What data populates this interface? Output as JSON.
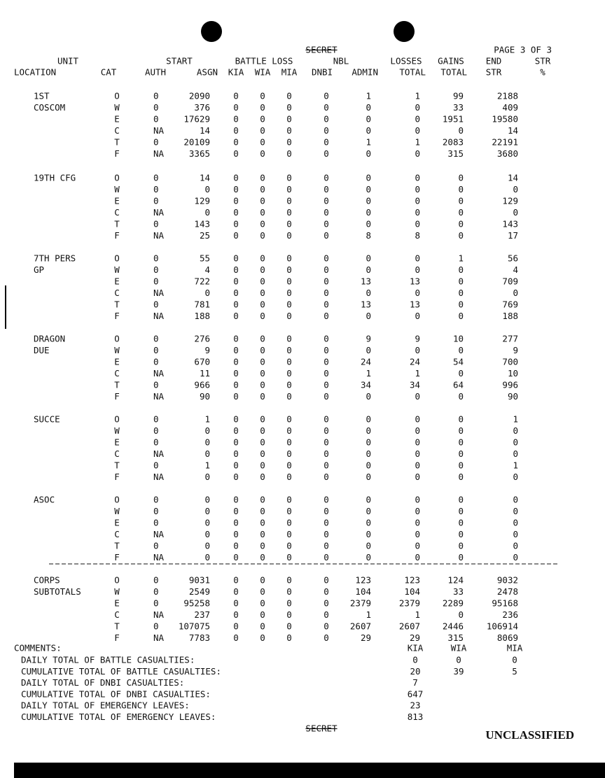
{
  "header": {
    "classification": "SECRET",
    "page": "PAGE 3 OF 3",
    "columns_top": [
      "UNIT",
      "START",
      "BATTLE LOSS",
      "NBL",
      "LOSSES",
      "GAINS",
      "END",
      "STR"
    ],
    "columns_bottom": [
      "LOCATION",
      "CAT",
      "AUTH",
      "ASGN",
      "KIA",
      "WIA",
      "MIA",
      "DNBI",
      "ADMIN",
      "TOTAL",
      "TOTAL",
      "STR",
      "%"
    ]
  },
  "units": [
    {
      "name": [
        "1ST",
        "COSCOM"
      ],
      "rows": [
        [
          "O",
          0,
          2090,
          0,
          0,
          0,
          0,
          1,
          1,
          99,
          2188
        ],
        [
          "W",
          0,
          376,
          0,
          0,
          0,
          0,
          0,
          0,
          33,
          409
        ],
        [
          "E",
          0,
          17629,
          0,
          0,
          0,
          0,
          0,
          0,
          1951,
          19580
        ],
        [
          "C",
          "NA",
          14,
          0,
          0,
          0,
          0,
          0,
          0,
          0,
          14
        ],
        [
          "T",
          0,
          20109,
          0,
          0,
          0,
          0,
          1,
          1,
          2083,
          22191
        ],
        [
          "F",
          "NA",
          3365,
          0,
          0,
          0,
          0,
          0,
          0,
          315,
          3680
        ]
      ]
    },
    {
      "name": [
        "19TH CFG"
      ],
      "rows": [
        [
          "O",
          0,
          14,
          0,
          0,
          0,
          0,
          0,
          0,
          0,
          14
        ],
        [
          "W",
          0,
          0,
          0,
          0,
          0,
          0,
          0,
          0,
          0,
          0
        ],
        [
          "E",
          0,
          129,
          0,
          0,
          0,
          0,
          0,
          0,
          0,
          129
        ],
        [
          "C",
          "NA",
          0,
          0,
          0,
          0,
          0,
          0,
          0,
          0,
          0
        ],
        [
          "T",
          0,
          143,
          0,
          0,
          0,
          0,
          0,
          0,
          0,
          143
        ],
        [
          "F",
          "NA",
          25,
          0,
          0,
          0,
          0,
          8,
          8,
          0,
          17
        ]
      ]
    },
    {
      "name": [
        "7TH PERS",
        "GP"
      ],
      "rows": [
        [
          "O",
          0,
          55,
          0,
          0,
          0,
          0,
          0,
          0,
          1,
          56
        ],
        [
          "W",
          0,
          4,
          0,
          0,
          0,
          0,
          0,
          0,
          0,
          4
        ],
        [
          "E",
          0,
          722,
          0,
          0,
          0,
          0,
          13,
          13,
          0,
          709
        ],
        [
          "C",
          "NA",
          0,
          0,
          0,
          0,
          0,
          0,
          0,
          0,
          0
        ],
        [
          "T",
          0,
          781,
          0,
          0,
          0,
          0,
          13,
          13,
          0,
          769
        ],
        [
          "F",
          "NA",
          188,
          0,
          0,
          0,
          0,
          0,
          0,
          0,
          188
        ]
      ]
    },
    {
      "name": [
        "DRAGON",
        "DUE"
      ],
      "rows": [
        [
          "O",
          0,
          276,
          0,
          0,
          0,
          0,
          9,
          9,
          10,
          277
        ],
        [
          "W",
          0,
          9,
          0,
          0,
          0,
          0,
          0,
          0,
          0,
          9
        ],
        [
          "E",
          0,
          670,
          0,
          0,
          0,
          0,
          24,
          24,
          54,
          700
        ],
        [
          "C",
          "NA",
          11,
          0,
          0,
          0,
          0,
          1,
          1,
          0,
          10
        ],
        [
          "T",
          0,
          966,
          0,
          0,
          0,
          0,
          34,
          34,
          64,
          996
        ],
        [
          "F",
          "NA",
          90,
          0,
          0,
          0,
          0,
          0,
          0,
          0,
          90
        ]
      ]
    },
    {
      "name": [
        "SUCCE"
      ],
      "rows": [
        [
          "O",
          0,
          1,
          0,
          0,
          0,
          0,
          0,
          0,
          0,
          1
        ],
        [
          "W",
          0,
          0,
          0,
          0,
          0,
          0,
          0,
          0,
          0,
          0
        ],
        [
          "E",
          0,
          0,
          0,
          0,
          0,
          0,
          0,
          0,
          0,
          0
        ],
        [
          "C",
          "NA",
          0,
          0,
          0,
          0,
          0,
          0,
          0,
          0,
          0
        ],
        [
          "T",
          0,
          1,
          0,
          0,
          0,
          0,
          0,
          0,
          0,
          1
        ],
        [
          "F",
          "NA",
          0,
          0,
          0,
          0,
          0,
          0,
          0,
          0,
          0
        ]
      ]
    },
    {
      "name": [
        "ASOC"
      ],
      "rows": [
        [
          "O",
          0,
          0,
          0,
          0,
          0,
          0,
          0,
          0,
          0,
          0
        ],
        [
          "W",
          0,
          0,
          0,
          0,
          0,
          0,
          0,
          0,
          0,
          0
        ],
        [
          "E",
          0,
          0,
          0,
          0,
          0,
          0,
          0,
          0,
          0,
          0
        ],
        [
          "C",
          "NA",
          0,
          0,
          0,
          0,
          0,
          0,
          0,
          0,
          0
        ],
        [
          "T",
          0,
          0,
          0,
          0,
          0,
          0,
          0,
          0,
          0,
          0
        ],
        [
          "F",
          "NA",
          0,
          0,
          0,
          0,
          0,
          0,
          0,
          0,
          0
        ]
      ]
    },
    {
      "name": [
        "CORPS",
        "SUBTOTALS"
      ],
      "rows": [
        [
          "O",
          0,
          9031,
          0,
          0,
          0,
          0,
          123,
          123,
          124,
          9032
        ],
        [
          "W",
          0,
          2549,
          0,
          0,
          0,
          0,
          104,
          104,
          33,
          2478
        ],
        [
          "E",
          0,
          95258,
          0,
          0,
          0,
          0,
          2379,
          2379,
          2289,
          95168
        ],
        [
          "C",
          "NA",
          237,
          0,
          0,
          0,
          0,
          1,
          1,
          0,
          236
        ],
        [
          "T",
          0,
          107075,
          0,
          0,
          0,
          0,
          2607,
          2607,
          2446,
          106914
        ],
        [
          "F",
          "NA",
          7783,
          0,
          0,
          0,
          0,
          29,
          29,
          315,
          8069
        ]
      ]
    }
  ],
  "comments": {
    "title": "COMMENTS:",
    "columns": [
      "KIA",
      "WIA",
      "MIA"
    ],
    "lines": [
      {
        "label": "DAILY TOTAL OF BATTLE CASUALTIES:",
        "values": [
          0,
          0,
          0
        ]
      },
      {
        "label": "CUMULATIVE TOTAL OF BATTLE CASUALTIES:",
        "values": [
          20,
          39,
          5
        ]
      },
      {
        "label": "DAILY TOTAL OF DNBI CASUALTIES:",
        "values": [
          7
        ]
      },
      {
        "label": "CUMULATIVE TOTAL OF DNBI CASUALTIES:",
        "values": [
          647
        ]
      },
      {
        "label": "DAILY TOTAL OF EMERGENCY LEAVES:",
        "values": [
          23
        ]
      },
      {
        "label": "CUMULATIVE TOTAL OF EMERGENCY LEAVES:",
        "values": [
          813
        ]
      }
    ]
  },
  "footer": {
    "classification": "SECRET",
    "marking": "UNCLASSIFIED"
  }
}
